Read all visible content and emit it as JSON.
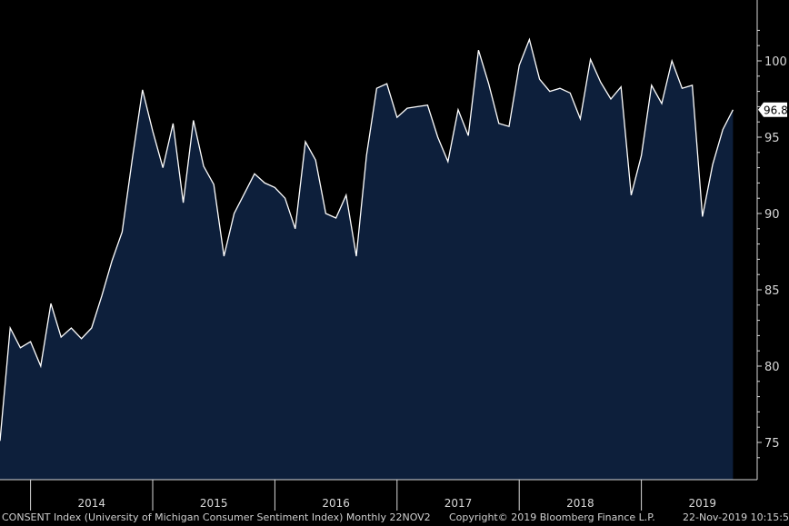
{
  "chart_data": {
    "type": "area",
    "title": "",
    "xlabel": "",
    "ylabel": "",
    "start": "2013-10",
    "frequency": "monthly",
    "values": [
      75.1,
      82.5,
      81.2,
      81.6,
      80.0,
      84.1,
      81.9,
      82.5,
      81.8,
      82.5,
      84.6,
      86.9,
      88.8,
      93.6,
      98.1,
      95.4,
      93.0,
      95.9,
      90.7,
      96.1,
      93.1,
      91.9,
      87.2,
      90.0,
      91.3,
      92.6,
      92.0,
      91.7,
      91.0,
      89.0,
      94.7,
      93.5,
      90.0,
      89.7,
      91.2,
      87.2,
      93.8,
      98.2,
      98.5,
      96.3,
      96.9,
      97.0,
      97.1,
      95.0,
      93.4,
      96.8,
      95.1,
      100.7,
      98.5,
      95.9,
      95.7,
      99.7,
      101.4,
      98.8,
      98.0,
      98.2,
      97.9,
      96.2,
      100.1,
      98.6,
      97.5,
      98.3,
      91.2,
      93.8,
      98.4,
      97.2,
      100.0,
      98.2,
      98.4,
      89.8,
      93.2,
      95.5,
      96.8
    ],
    "last_value": "96.8",
    "ylim": [
      73,
      103
    ],
    "yticks": [
      "75",
      "80",
      "85",
      "90",
      "95",
      "100"
    ],
    "year_labels": [
      "2014",
      "2015",
      "2016",
      "2017",
      "2018",
      "2019"
    ],
    "grid": false,
    "colors": {
      "background": "#000000",
      "fill": "#0d1f3b",
      "line": "#ffffff",
      "axis": "#d9d9d9",
      "last_value_box": "#ffffff"
    }
  },
  "footer": {
    "left": "CONSENT Index (University of Michigan Consumer Sentiment Index)  Monthly 22NOV2",
    "center": "Copyright© 2019 Bloomberg Finance L.P.",
    "right": "22-Nov-2019 10:15:50"
  }
}
